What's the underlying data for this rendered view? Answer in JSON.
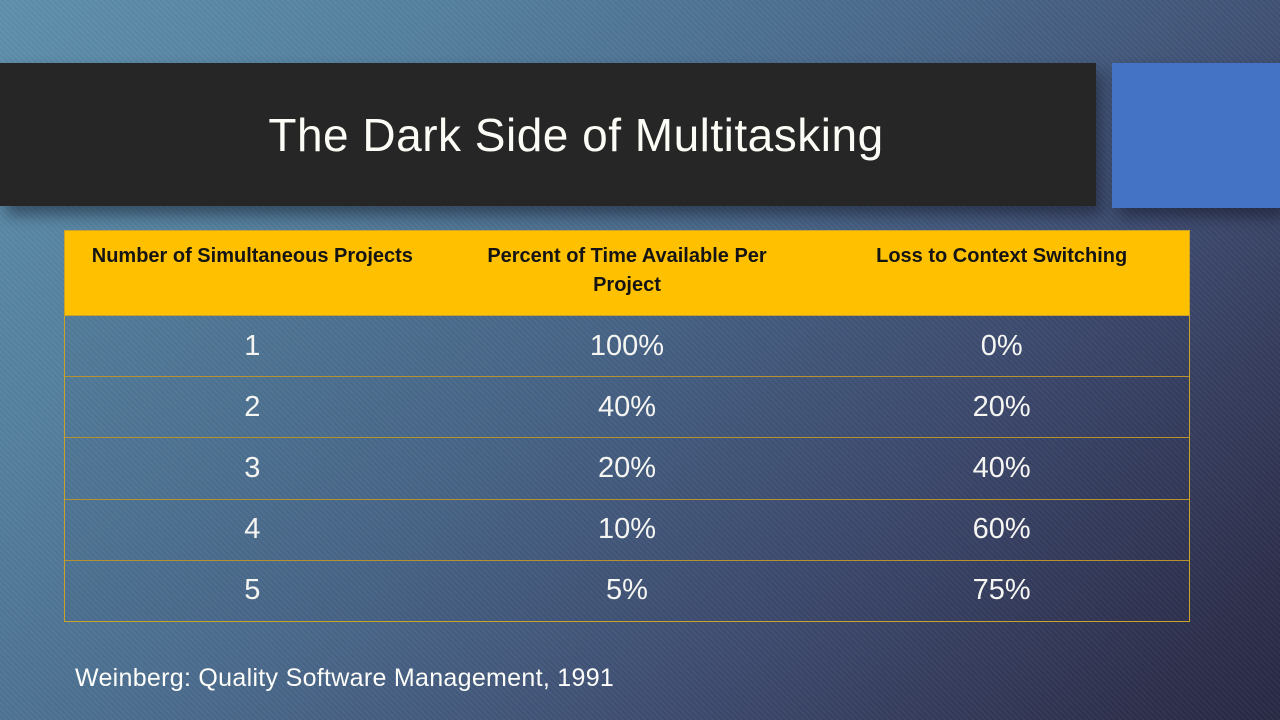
{
  "slide": {
    "title": "The Dark Side of Multitasking",
    "citation": "Weinberg: Quality Software Management, 1991"
  },
  "table": {
    "columns": [
      "Number of Simultaneous Projects",
      "Percent of Time Available Per Project",
      "Loss to Context Switching"
    ],
    "rows": [
      [
        "1",
        "100%",
        "0%"
      ],
      [
        "2",
        "40%",
        "20%"
      ],
      [
        "3",
        "20%",
        "40%"
      ],
      [
        "4",
        "10%",
        "60%"
      ],
      [
        "5",
        "5%",
        "75%"
      ]
    ]
  },
  "colors": {
    "title_bar_fill": "#262626",
    "title_text": "#FCFCF6",
    "accent_rectangle": "#4472C4",
    "table_header_fill": "#FFC000",
    "table_header_text": "#141414",
    "table_border_gold": "#C9A22A",
    "row_separator_gold": "#B5922F",
    "body_text": "#F5F5F2",
    "background_top_left": "#5E8FAC",
    "background_bottom_right": "#282944"
  }
}
